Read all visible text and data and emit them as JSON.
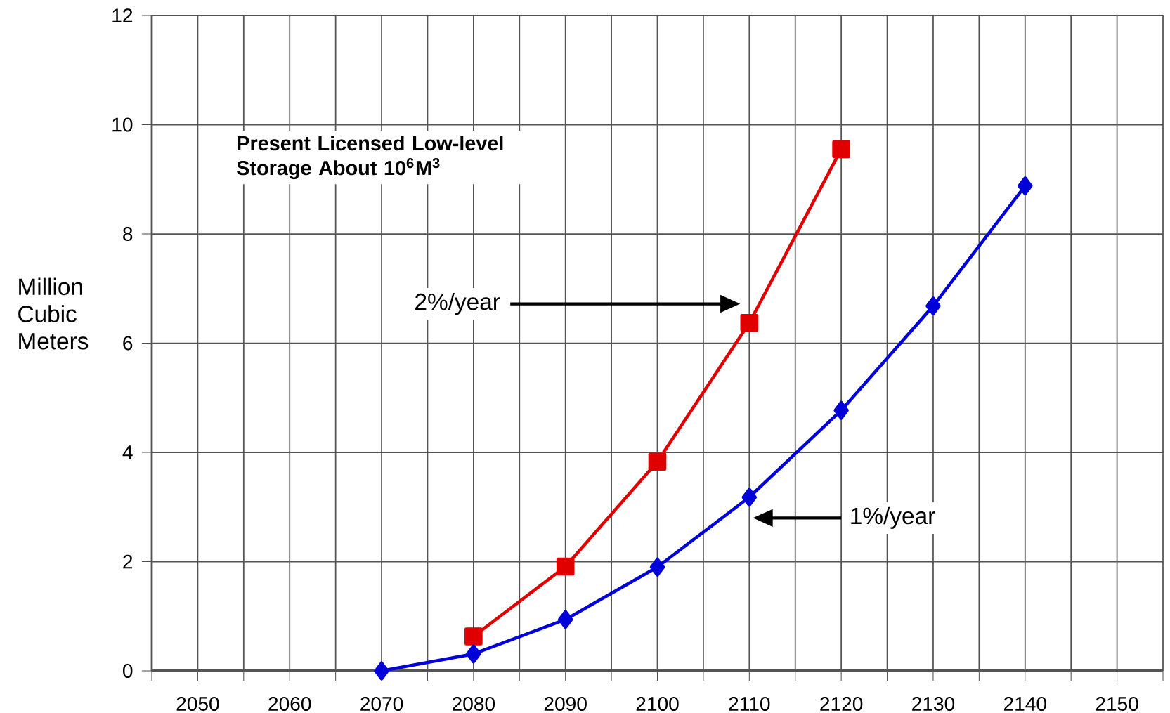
{
  "chart_data": {
    "type": "line",
    "ylabel": "Million Cubic Meters",
    "annotations": [
      "**Present Licensed Low-level Storage About 10$^{6}$M$^{3}$**",
      "2%/year",
      "1%/year"
    ],
    "series": [
      {
        "color": "#e00000",
        "marker": "square",
        "x": [
          2080,
          2090,
          2100,
          2110,
          2120
        ],
        "values": [
          0.63,
          1.91,
          3.83,
          6.37,
          9.55
        ]
      },
      {
        "color": "#0000d8",
        "marker": "diamond",
        "x": [
          2070,
          2080,
          2090,
          2100,
          2110,
          2120,
          2130,
          2140
        ],
        "values": [
          0,
          0.31,
          0.94,
          1.9,
          3.18,
          4.77,
          6.68,
          8.88
        ]
      }
    ],
    "xlim": [
      2045,
      2155
    ],
    "ylim": [
      0,
      12
    ],
    "xticks": [
      {
        "value": 2045,
        "label": null
      },
      2050,
      {
        "value": 2055,
        "label": null
      },
      2060,
      {
        "value": 2065,
        "label": null
      },
      2070,
      {
        "value": 2075,
        "label": null
      },
      2080,
      {
        "value": 2085,
        "label": null
      },
      2090,
      {
        "value": 2095,
        "label": null
      },
      2100,
      {
        "value": 2105,
        "label": null
      },
      2110,
      {
        "value": 2115,
        "label": null
      },
      2120,
      {
        "value": 2125,
        "label": null
      },
      2130,
      {
        "value": 2135,
        "label": null
      },
      2140,
      {
        "value": 2145,
        "label": null
      },
      2150,
      {
        "value": 2155,
        "label": null
      }
    ],
    "yticks": [
      0,
      2,
      4,
      6,
      8,
      10,
      12
    ],
    "grid": true,
    "line_style": "solid"
  }
}
